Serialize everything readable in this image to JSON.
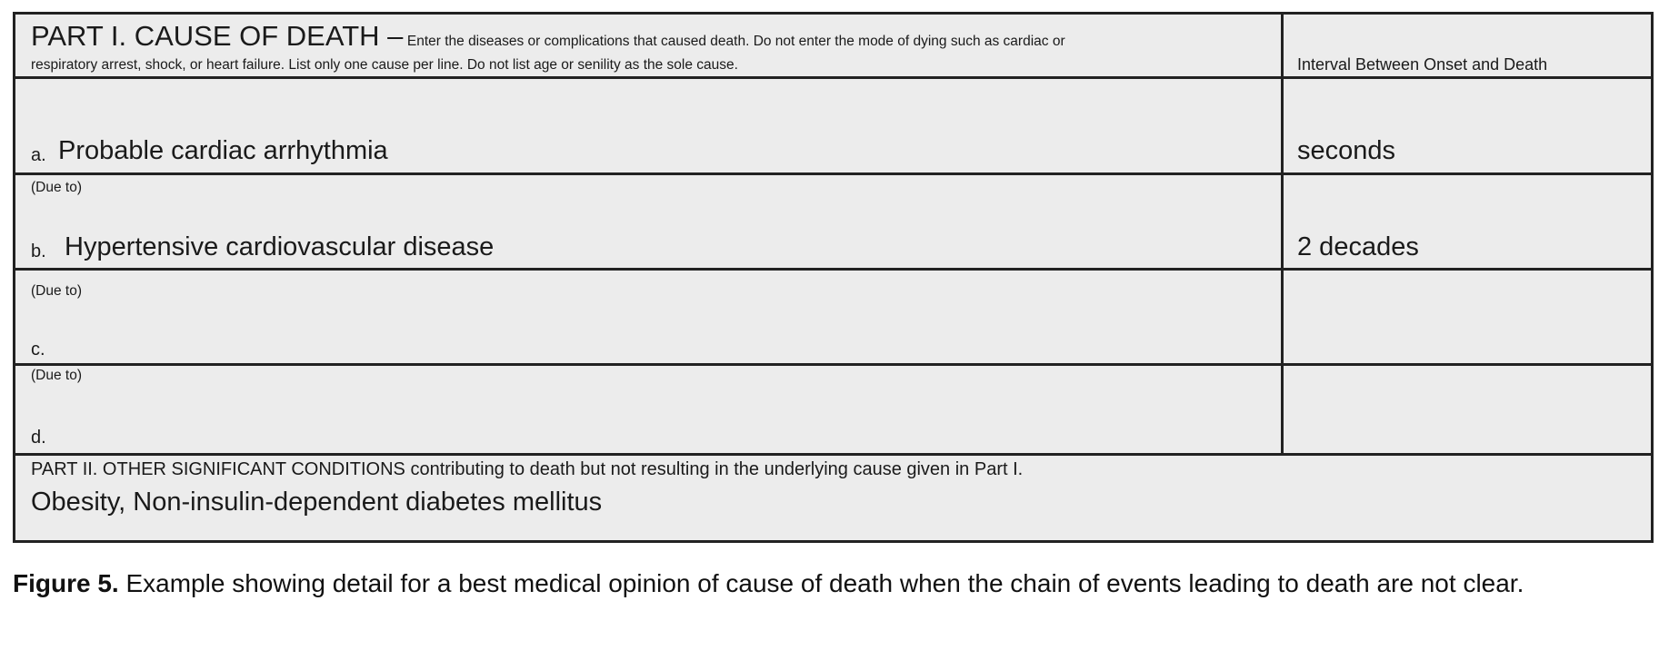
{
  "part1": {
    "title": "PART I. CAUSE OF DEATH –",
    "instructions_line1": "Enter the diseases or complications that caused death. Do not enter the mode of dying such as cardiac or",
    "instructions_line2": "respiratory arrest, shock, or heart failure. List only one cause per line.  Do not list age or senility as the sole cause.",
    "interval_header": "Interval Between Onset and Death",
    "lines": [
      {
        "letter": "a.",
        "due_to": "",
        "cause": "Probable cardiac arrhythmia",
        "interval": "seconds"
      },
      {
        "letter": "b.",
        "due_to": "(Due to)",
        "cause": "Hypertensive cardiovascular disease",
        "interval": "2 decades"
      },
      {
        "letter": "c.",
        "due_to": "(Due to)",
        "cause": "",
        "interval": ""
      },
      {
        "letter": "d.",
        "due_to": "(Due to)",
        "cause": "",
        "interval": ""
      }
    ]
  },
  "part2": {
    "label": "PART II.  OTHER SIGNIFICANT CONDITIONS contributing to death but not resulting in the underlying cause given in Part I.",
    "value": "Obesity, Non-insulin-dependent diabetes mellitus"
  },
  "caption": {
    "label": "Figure 5.",
    "text": " Example showing detail for a best medical opinion of cause of death when the chain of events leading to death are not clear."
  }
}
